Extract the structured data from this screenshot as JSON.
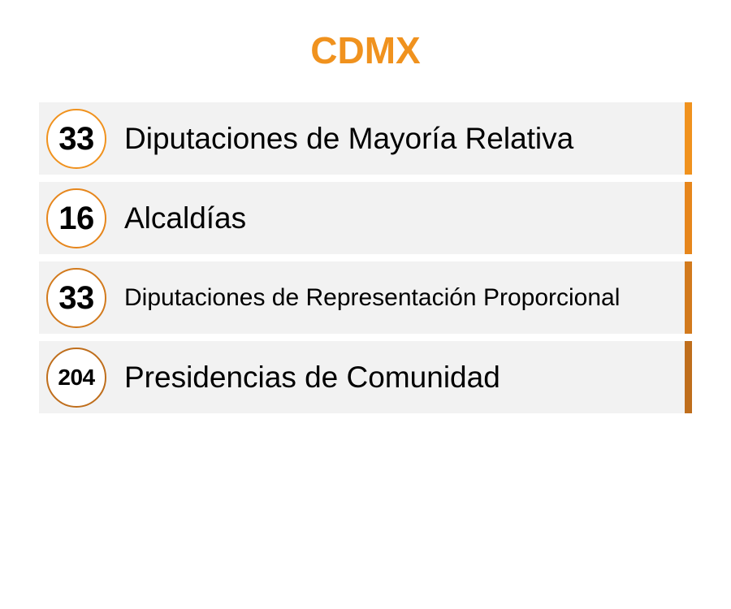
{
  "title": "CDMX",
  "colors": {
    "title": "#f0921e",
    "row_background": "#f2f2f2"
  },
  "items": [
    {
      "count": "33",
      "label": "Diputaciones de Mayoría Relativa",
      "color": "#f0921e"
    },
    {
      "count": "16",
      "label": "Alcaldías",
      "color": "#e6861c"
    },
    {
      "count": "33",
      "label": "Diputaciones de Representación Proporcional",
      "color": "#d27a1d"
    },
    {
      "count": "204",
      "label": "Presidencias de Comunidad",
      "color": "#bf6e1c"
    }
  ]
}
